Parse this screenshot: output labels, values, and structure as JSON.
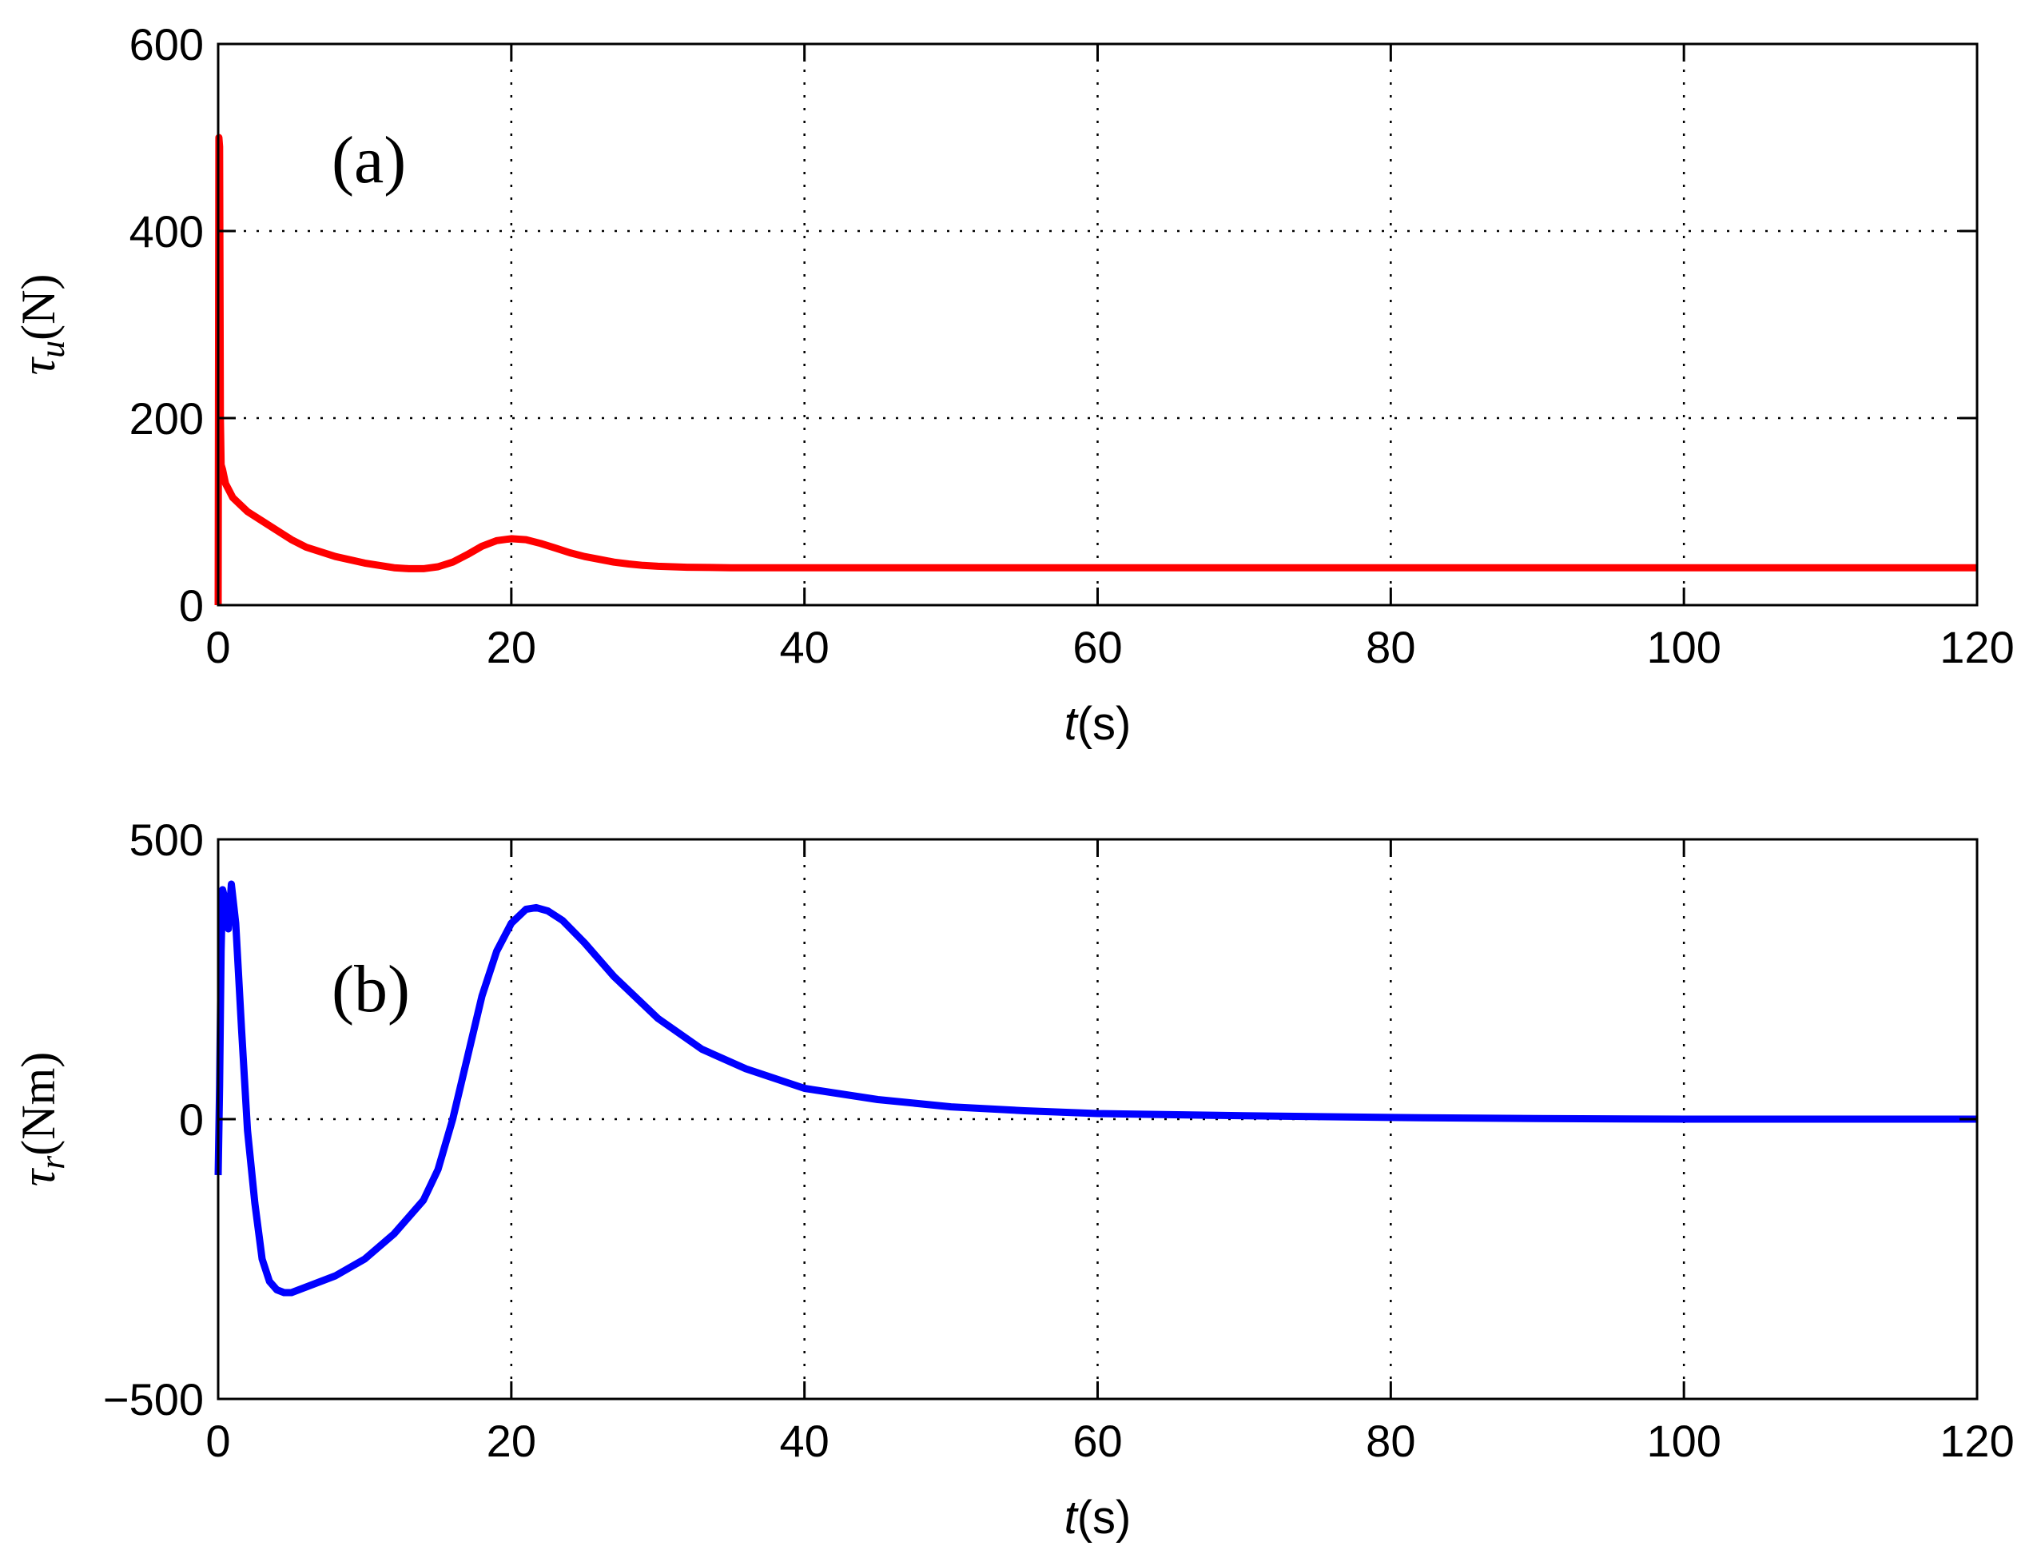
{
  "chart_data": [
    {
      "type": "line",
      "panel_label": "(a)",
      "xlabel": {
        "italic": "t",
        "rest": "(s)"
      },
      "ylabel": {
        "symbol": "τ",
        "sub": "u",
        "unit": "(N)"
      },
      "xlim": [
        0,
        120
      ],
      "ylim": [
        0,
        600
      ],
      "xticks": [
        0,
        20,
        40,
        60,
        80,
        100,
        120
      ],
      "yticks": [
        0,
        200,
        400,
        600
      ],
      "xtick_labels": [
        "0",
        "20",
        "40",
        "60",
        "80",
        "100",
        "120"
      ],
      "ytick_labels": [
        "0",
        "200",
        "400",
        "600"
      ],
      "grid": true,
      "series": [
        {
          "color": "#ff0000",
          "x": [
            0,
            0.05,
            0.1,
            0.15,
            0.2,
            0.3,
            0.5,
            1,
            2,
            3,
            4,
            5,
            6,
            8,
            10,
            12,
            13,
            14,
            15,
            16,
            17,
            18,
            19,
            20,
            21,
            22,
            23,
            24,
            25,
            26,
            27,
            28,
            29,
            30,
            32,
            35,
            40,
            50,
            60,
            80,
            100,
            120
          ],
          "y": [
            0,
            500,
            490,
            200,
            150,
            145,
            130,
            115,
            100,
            90,
            80,
            70,
            62,
            52,
            45,
            40,
            39,
            39,
            41,
            46,
            54,
            63,
            69,
            71,
            70,
            66,
            61,
            56,
            52,
            49,
            46,
            44,
            42.5,
            41.5,
            40.5,
            40,
            40,
            40,
            40,
            40,
            40,
            40
          ]
        }
      ]
    },
    {
      "type": "line",
      "panel_label": "(b)",
      "xlabel": {
        "italic": "t",
        "rest": "(s)"
      },
      "ylabel": {
        "symbol": "τ",
        "sub": "r",
        "unit": "(Nm)"
      },
      "xlim": [
        0,
        120
      ],
      "ylim": [
        -500,
        500
      ],
      "xticks": [
        0,
        20,
        40,
        60,
        80,
        100,
        120
      ],
      "yticks": [
        -500,
        0,
        500
      ],
      "xtick_labels": [
        "0",
        "20",
        "40",
        "60",
        "80",
        "100",
        "120"
      ],
      "ytick_labels": [
        "−500",
        "0",
        "500"
      ],
      "grid": true,
      "series": [
        {
          "color": "#0000ff",
          "x": [
            0,
            0.1,
            0.2,
            0.3,
            0.5,
            0.7,
            0.9,
            1.2,
            1.6,
            2,
            2.5,
            3,
            3.5,
            4,
            4.5,
            5,
            6,
            8,
            10,
            12,
            14,
            15,
            16,
            17,
            18,
            19,
            20,
            21,
            21.7,
            22.5,
            23.5,
            25,
            27,
            30,
            33,
            36,
            40,
            45,
            50,
            55,
            60,
            70,
            80,
            90,
            100,
            110,
            120
          ],
          "y": [
            -100,
            60,
            300,
            410,
            390,
            340,
            420,
            350,
            160,
            -20,
            -150,
            -250,
            -290,
            -305,
            -310,
            -310,
            -300,
            -280,
            -250,
            -205,
            -145,
            -90,
            0,
            110,
            220,
            300,
            350,
            375,
            378,
            372,
            355,
            315,
            255,
            180,
            125,
            90,
            55,
            35,
            22,
            15,
            10,
            6,
            3,
            1,
            0,
            0,
            0
          ]
        }
      ]
    }
  ]
}
